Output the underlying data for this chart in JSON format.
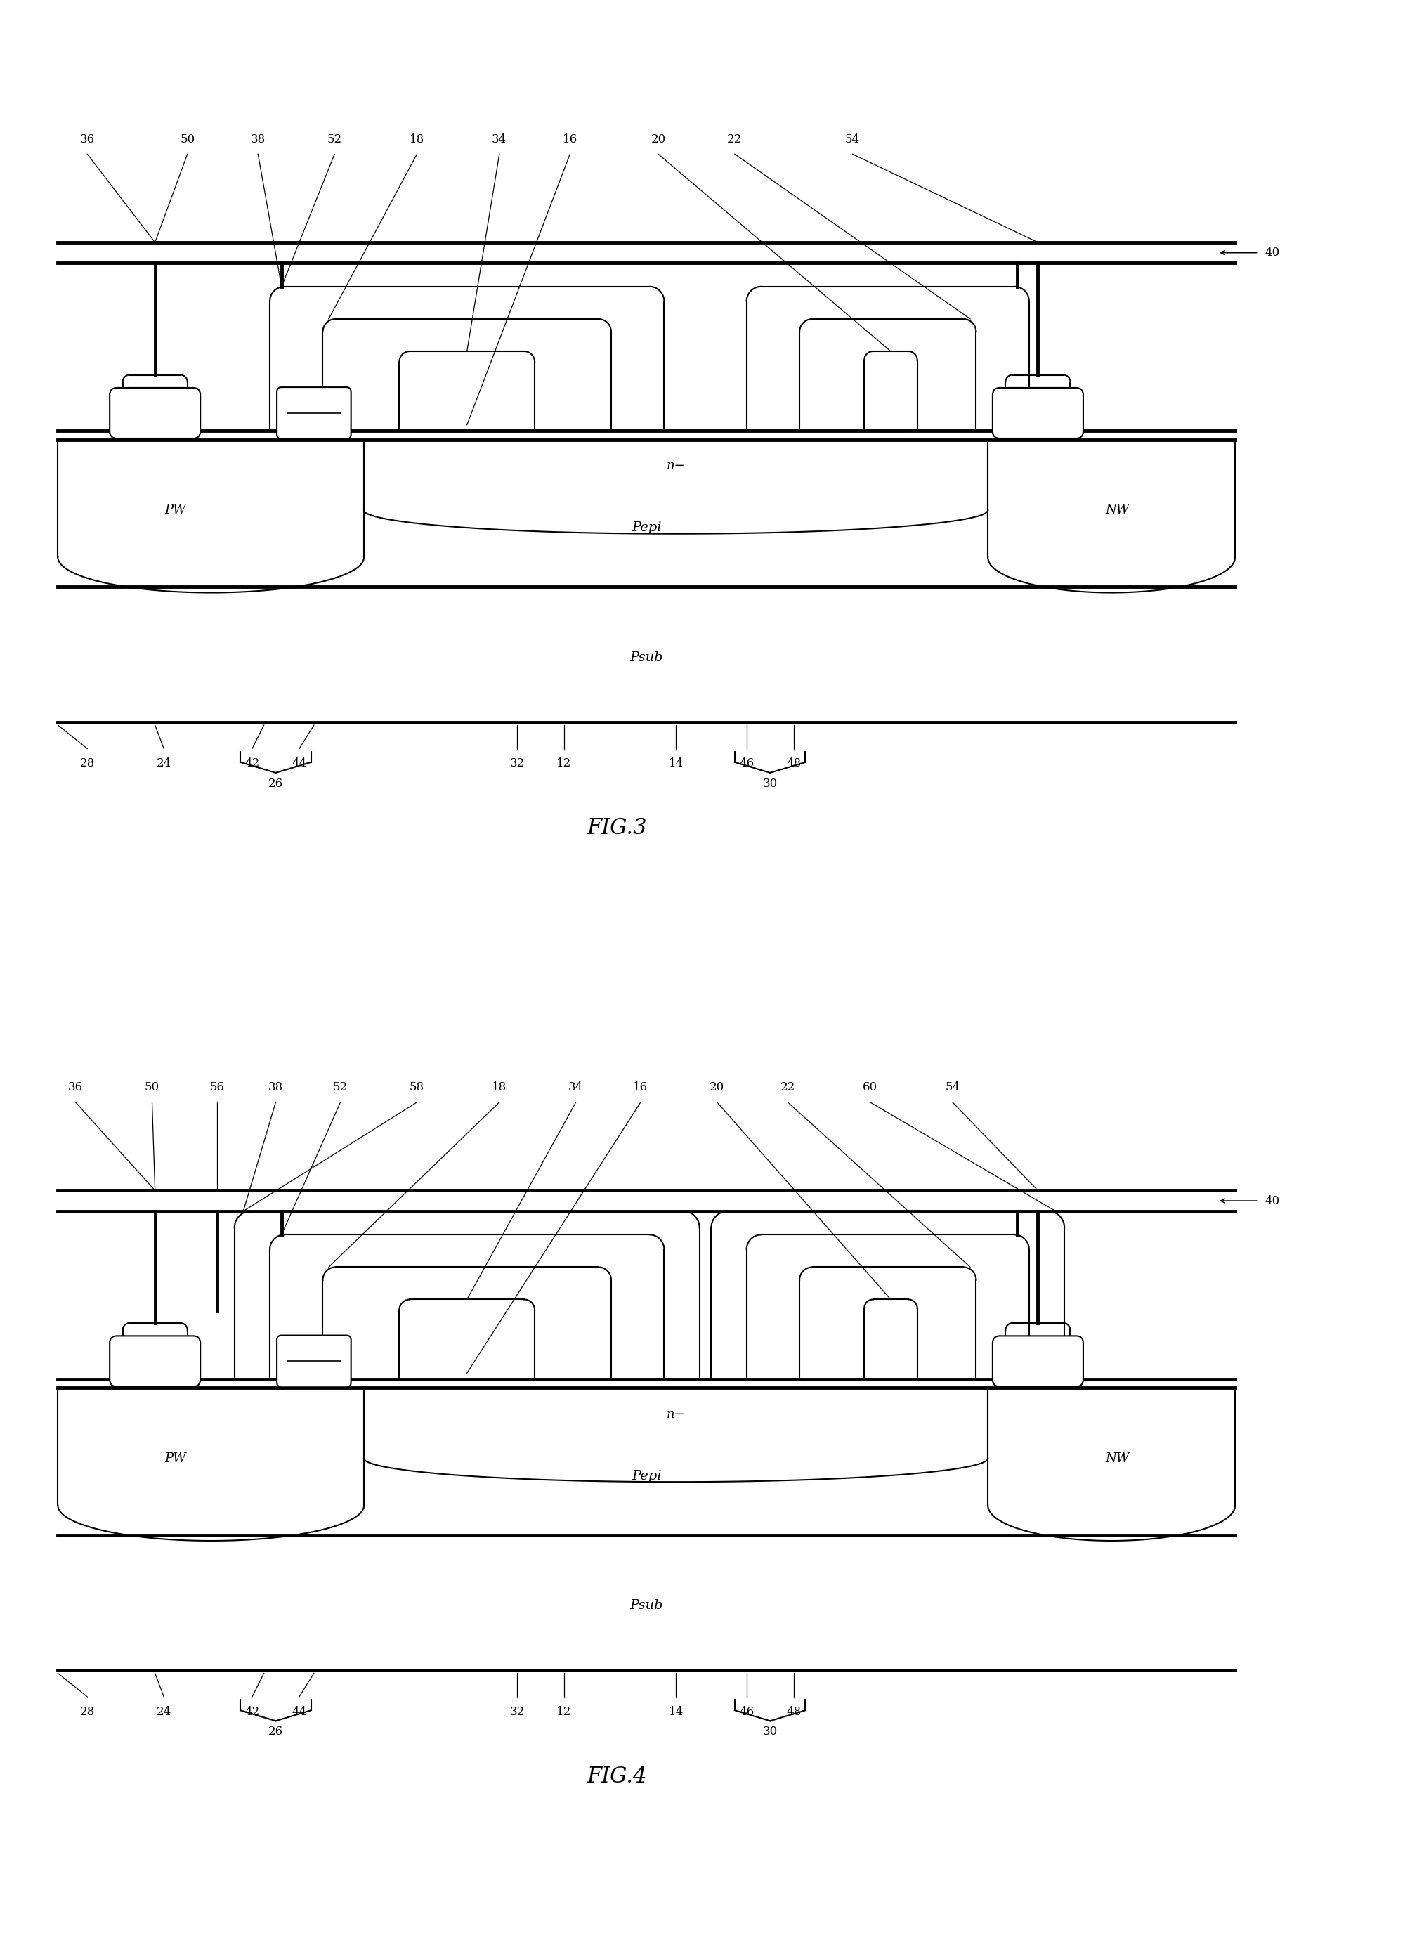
{
  "fig_width": 20.27,
  "fig_height": 27.54,
  "bg": "#ffffff",
  "lc": "black",
  "lw": 1.5,
  "tlw": 3.5,
  "fs_region": 13,
  "fs_label": 12,
  "fs_fig": 22,
  "fig3_top_labels": [
    "36",
    "50",
    "38",
    "52",
    "18",
    "34",
    "16",
    "20",
    "22",
    "54"
  ],
  "fig3_bot_labels": [
    "28",
    "24",
    "42",
    "44",
    "32",
    "12",
    "14",
    "46",
    "48"
  ],
  "fig4_top_labels": [
    "36",
    "50",
    "56",
    "38",
    "52",
    "58",
    "18",
    "34",
    "16",
    "20",
    "22",
    "60",
    "54"
  ],
  "fig4_bot_labels": [
    "28",
    "24",
    "42",
    "44",
    "32",
    "12",
    "14",
    "46",
    "48"
  ]
}
